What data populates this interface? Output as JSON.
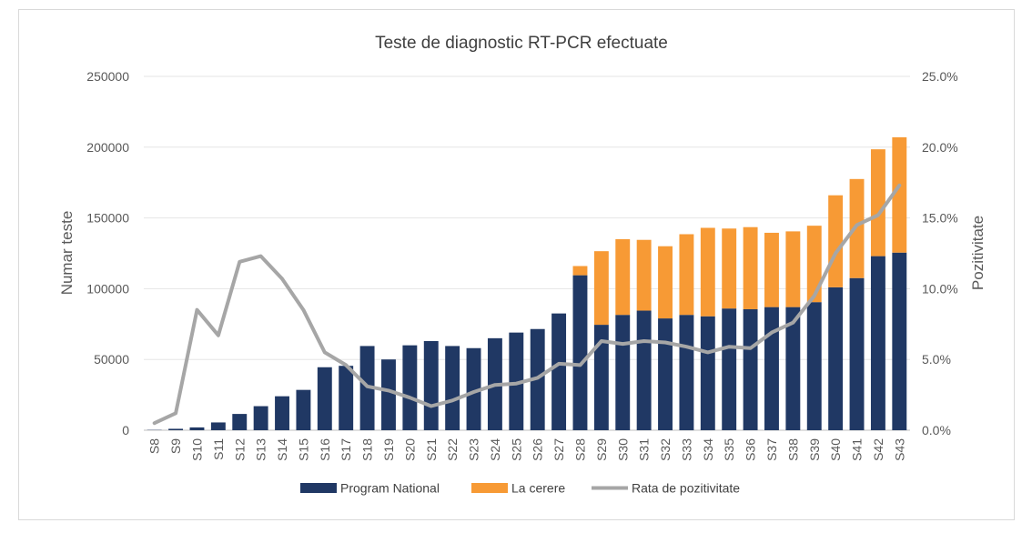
{
  "chart_data": {
    "type": "bar",
    "title": "Teste de diagnostic RT-PCR efectuate",
    "ylabel": "Numar teste",
    "y2label": "Pozitivitate",
    "ylim": [
      0,
      250000
    ],
    "y2lim": [
      0,
      25.0
    ],
    "yticks": [
      "0",
      "50000",
      "100000",
      "150000",
      "200000",
      "250000"
    ],
    "y2ticks": [
      "0.0%",
      "5.0%",
      "10.0%",
      "15.0%",
      "20.0%",
      "25.0%"
    ],
    "stacked": true,
    "grid": true,
    "legend_position": "bottom",
    "categories": [
      "S8",
      "S9",
      "S10",
      "S11",
      "S12",
      "S13",
      "S14",
      "S15",
      "S16",
      "S17",
      "S18",
      "S19",
      "S20",
      "S21",
      "S22",
      "S23",
      "S24",
      "S25",
      "S26",
      "S27",
      "S28",
      "S29",
      "S30",
      "S31",
      "S32",
      "S33",
      "S34",
      "S35",
      "S36",
      "S37",
      "S38",
      "S39",
      "S40",
      "S41",
      "S42",
      "S43"
    ],
    "series": [
      {
        "name": "Program National",
        "type": "bar",
        "axis": "left",
        "color": "#203864",
        "values": [
          200,
          1000,
          2000,
          5500,
          11500,
          17000,
          24000,
          28500,
          44500,
          45500,
          59500,
          50000,
          60000,
          63000,
          59500,
          58000,
          65000,
          69000,
          71500,
          82500,
          109500,
          74500,
          81500,
          84500,
          79000,
          81500,
          80500,
          86000,
          85500,
          87000,
          87000,
          90500,
          101000,
          107500,
          123000,
          125500
        ]
      },
      {
        "name": "La cerere",
        "type": "bar",
        "axis": "left",
        "color": "#f79a35",
        "values": [
          0,
          0,
          0,
          0,
          0,
          0,
          0,
          0,
          0,
          0,
          0,
          0,
          0,
          0,
          0,
          0,
          0,
          0,
          0,
          0,
          6500,
          52000,
          53500,
          50000,
          51000,
          57000,
          62500,
          56500,
          58000,
          52500,
          53500,
          54000,
          65000,
          70000,
          75500,
          81500
        ]
      },
      {
        "name": "Rata de pozitivitate",
        "type": "line",
        "axis": "right",
        "color": "#a6a6a6",
        "values": [
          0.5,
          1.2,
          8.5,
          6.7,
          11.9,
          12.3,
          10.7,
          8.5,
          5.5,
          4.6,
          3.1,
          2.8,
          2.3,
          1.7,
          2.1,
          2.7,
          3.2,
          3.3,
          3.7,
          4.7,
          4.6,
          6.3,
          6.1,
          6.3,
          6.2,
          5.9,
          5.5,
          5.9,
          5.8,
          6.9,
          7.6,
          9.5,
          12.5,
          14.5,
          15.2,
          17.3
        ]
      }
    ]
  }
}
